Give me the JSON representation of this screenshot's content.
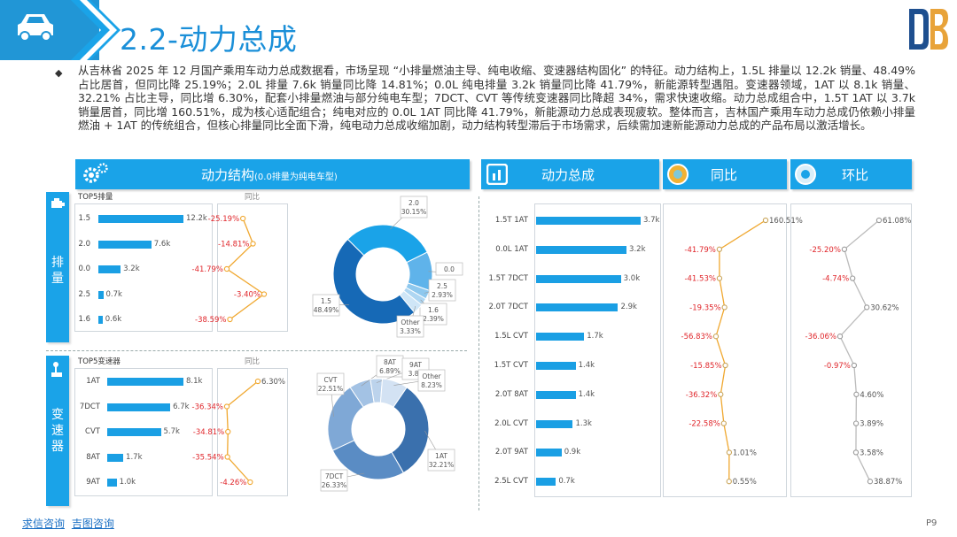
{
  "header": {
    "title": "2.2-动力总成"
  },
  "summary": "从吉林省 2025 年 12 月国产乘用车动力总成数据看，市场呈现 “小排量燃油主导、纯电收缩、变速器结构固化” 的特征。动力结构上，1.5L 排量以 12.2k 销量、48.49% 占比居首，但同比降 25.19%；2.0L 排量 7.6k 销量同比降 14.81%；0.0L 纯电排量 3.2k 销量同比降 41.79%，新能源转型遇阻。变速器领域，1AT 以 8.1k 销量、32.21% 占比主导，同比增 6.30%，配套小排量燃油与部分纯电车型；7DCT、CVT 等传统变速器同比降超 34%，需求快速收缩。动力总成组合中，1.5T 1AT 以 3.7k 销量居首，同比增 160.51%，成为核心适配组合；纯电对应的 0.0L 1AT 同比降 41.79%，新能源动力总成表现疲软。整体而言，吉林国产乘用车动力总成仍依赖小排量燃油 + 1AT 的传统组合，但核心排量同比全面下滑，纯电动力总成收缩加剧，动力结构转型滞后于市场需求，后续需加速新能源动力总成的产品布局以激活增长。",
  "sections": {
    "structure": {
      "label": "动力结构",
      "sub": "(0.0排量为纯电车型)"
    },
    "powertrain": {
      "label": "动力总成"
    },
    "yoy": {
      "label": "同比"
    },
    "mom": {
      "label": "环比"
    }
  },
  "side": {
    "displacement": "排量",
    "transmission": "变速器"
  },
  "footer": {
    "link1": "求信咨询",
    "link2": "吉图咨询",
    "page": "P9"
  },
  "chart_data": [
    {
      "type": "bar",
      "title": "TOP5排量",
      "categories": [
        "1.5",
        "2.0",
        "0.0",
        "2.5",
        "1.6"
      ],
      "values": [
        12.2,
        7.6,
        3.2,
        0.7,
        0.6
      ],
      "value_labels": [
        "12.2k",
        "7.6k",
        "3.2k",
        "0.7k",
        "0.6k"
      ],
      "yoy_title": "同比",
      "yoy": [
        -25.19,
        -14.81,
        -41.79,
        -3.4,
        -38.59
      ],
      "yoy_labels": [
        "-25.19%",
        "-14.81%",
        "-41.79%",
        "-3.40%",
        "-38.59%"
      ]
    },
    {
      "type": "pie",
      "slices": [
        {
          "label": "1.5",
          "pct": 48.49,
          "pct_label": "48.49%",
          "color": "#1669b6"
        },
        {
          "label": "2.0",
          "pct": 30.15,
          "pct_label": "30.15%",
          "color": "#1aa3e8"
        },
        {
          "label": "0.0",
          "pct": 12.69,
          "pct_label": "",
          "color": "#5fb3ea"
        },
        {
          "label": "2.5",
          "pct": 2.93,
          "pct_label": "2.93%",
          "color": "#8ec8ee"
        },
        {
          "label": "1.6",
          "pct": 2.39,
          "pct_label": "2.39%",
          "color": "#aed6f2"
        },
        {
          "label": "Other",
          "pct": 3.33,
          "pct_label": "3.33%",
          "color": "#cfe6f7"
        }
      ]
    },
    {
      "type": "bar",
      "title": "TOP5变速器",
      "categories": [
        "1AT",
        "7DCT",
        "CVT",
        "8AT",
        "9AT"
      ],
      "values": [
        8.1,
        6.7,
        5.7,
        1.7,
        1.0
      ],
      "value_labels": [
        "8.1k",
        "6.7k",
        "5.7k",
        "1.7k",
        "1.0k"
      ],
      "yoy_title": "同比",
      "yoy": [
        6.3,
        -36.34,
        -34.81,
        -35.54,
        -4.26
      ],
      "yoy_labels": [
        "6.30%",
        "-36.34%",
        "-34.81%",
        "-35.54%",
        "-4.26%"
      ]
    },
    {
      "type": "pie",
      "slices": [
        {
          "label": "1AT",
          "pct": 32.21,
          "pct_label": "32.21%",
          "color": "#3a70ad"
        },
        {
          "label": "7DCT",
          "pct": 26.33,
          "pct_label": "26.33%",
          "color": "#5a8cc4"
        },
        {
          "label": "CVT",
          "pct": 22.51,
          "pct_label": "22.51%",
          "color": "#7fa8d6"
        },
        {
          "label": "8AT",
          "pct": 6.89,
          "pct_label": "6.89%",
          "color": "#a3c2e4"
        },
        {
          "label": "9AT",
          "pct": 3.83,
          "pct_label": "3.83",
          "color": "#bcd3ec"
        },
        {
          "label": "Other",
          "pct": 8.23,
          "pct_label": "8.23%",
          "color": "#d3e2f3"
        }
      ]
    },
    {
      "type": "bar",
      "title": "动力总成",
      "categories": [
        "1.5T 1AT",
        "0.0L 1AT",
        "1.5T 7DCT",
        "2.0T 7DCT",
        "1.5L CVT",
        "1.5T CVT",
        "2.0T 8AT",
        "2.0L CVT",
        "2.0T 9AT",
        "2.5L CVT"
      ],
      "values": [
        3.7,
        3.2,
        3.0,
        2.9,
        1.7,
        1.4,
        1.4,
        1.3,
        0.9,
        0.7
      ],
      "value_labels": [
        "3.7k",
        "3.2k",
        "3.0k",
        "2.9k",
        "1.7k",
        "1.4k",
        "1.4k",
        "1.3k",
        "0.9k",
        "0.7k"
      ]
    },
    {
      "type": "line",
      "title": "同比",
      "values": [
        160.51,
        -41.79,
        -41.53,
        -19.35,
        -56.83,
        -15.85,
        -36.32,
        -22.58,
        1.01,
        0.55
      ],
      "labels": [
        "160.51%",
        "-41.79%",
        "-41.53%",
        "-19.35%",
        "-56.83%",
        "-15.85%",
        "-36.32%",
        "-22.58%",
        "1.01%",
        "0.55%"
      ]
    },
    {
      "type": "line",
      "title": "环比",
      "values": [
        61.08,
        -25.2,
        -4.74,
        30.62,
        -36.06,
        -0.97,
        4.6,
        3.89,
        3.58,
        38.87
      ],
      "labels": [
        "61.08%",
        "-25.20%",
        "-4.74%",
        "30.62%",
        "-36.06%",
        "-0.97%",
        "4.60%",
        "3.89%",
        "3.58%",
        "38.87%"
      ]
    }
  ]
}
